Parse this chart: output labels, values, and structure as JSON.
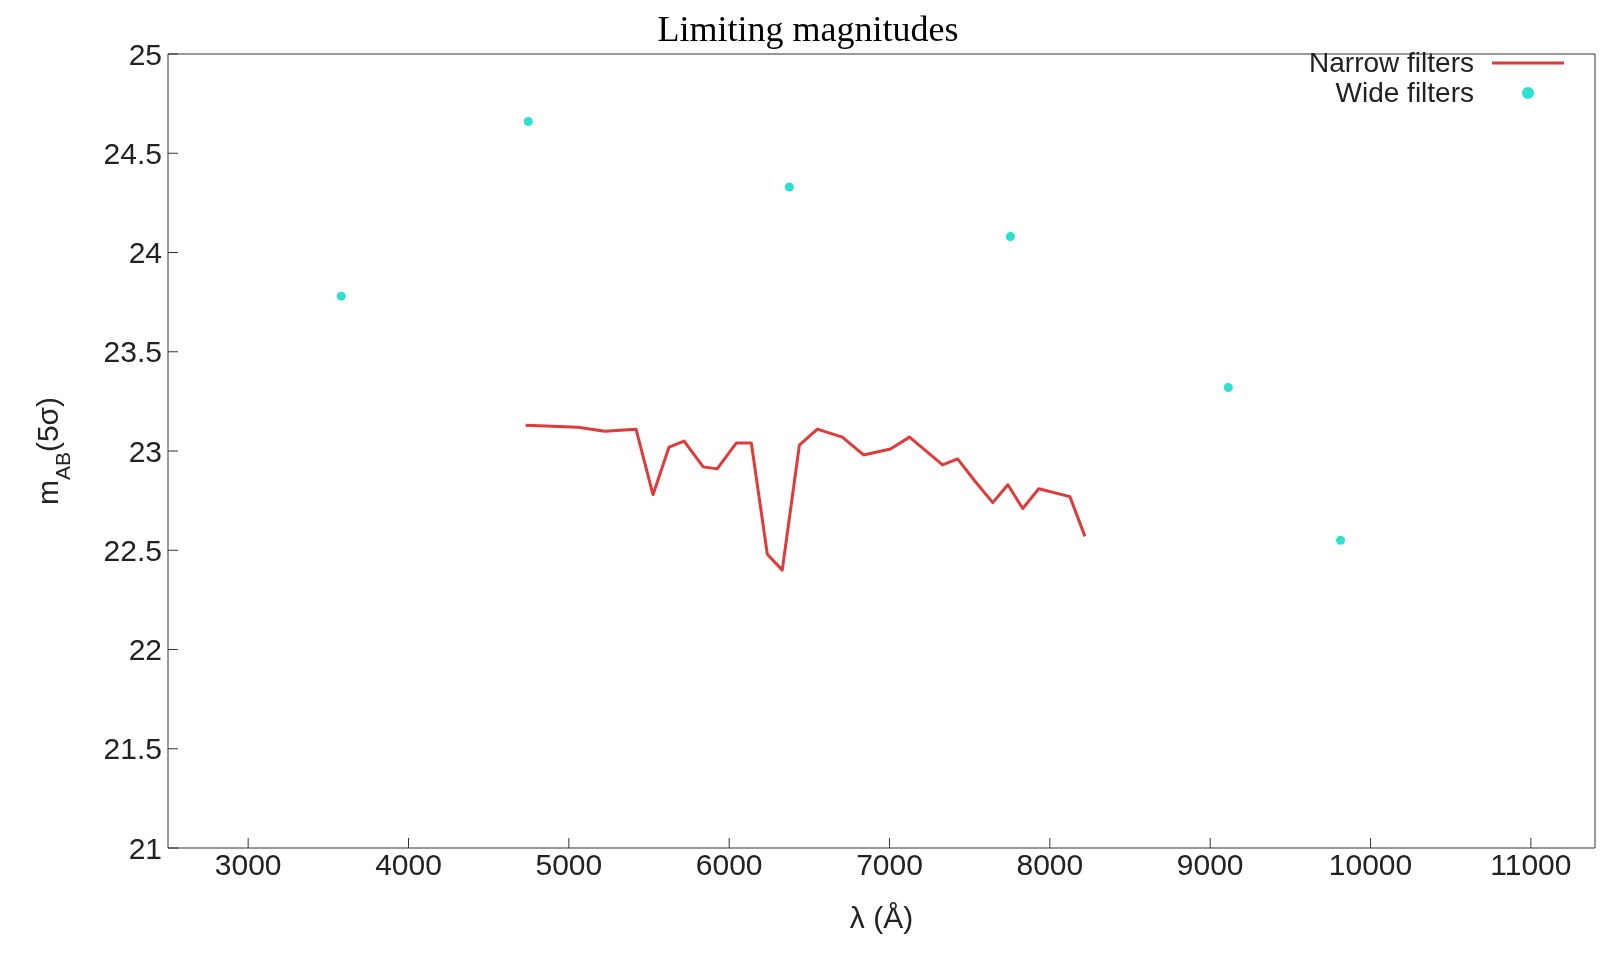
{
  "chart_data": {
    "type": "line",
    "title": "Limiting magnitudes",
    "xlabel": "λ (Å)",
    "ylabel": "m$_{AB}$(5σ)",
    "xlim": [
      2500,
      11400
    ],
    "xticks": [
      3000,
      4000,
      5000,
      6000,
      7000,
      8000,
      9000,
      10000,
      11000
    ],
    "ylim": [
      21,
      25
    ],
    "yticks": [
      21,
      21.5,
      22,
      22.5,
      23,
      23.5,
      24,
      24.5,
      25
    ],
    "grid": false,
    "legend": "top right",
    "series": [
      {
        "name": "Narrow filters",
        "type": "line",
        "color": "#e03a3a",
        "marker": "none",
        "line_style": "solid",
        "x": [
          4731,
          5056,
          5225,
          5419,
          5525,
          5625,
          5719,
          5838,
          5925,
          6044,
          6138,
          6238,
          6331,
          6438,
          6550,
          6706,
          6838,
          7006,
          7125,
          7331,
          7425,
          7531,
          7644,
          7738,
          7831,
          7931,
          8125,
          8219
        ],
        "values": [
          23.13,
          23.12,
          23.1,
          23.11,
          22.78,
          23.02,
          23.05,
          22.92,
          22.91,
          23.04,
          23.04,
          22.48,
          22.4,
          23.03,
          23.11,
          23.07,
          22.98,
          23.01,
          23.07,
          22.93,
          22.96,
          22.85,
          22.74,
          22.83,
          22.71,
          22.81,
          22.77,
          22.57
        ]
      },
      {
        "name": "Wide filters",
        "type": "scatter",
        "color": "#2ee0d0",
        "marker": "circle",
        "x": [
          3581,
          4747,
          6375,
          7754,
          9113,
          9813
        ],
        "values": [
          23.78,
          24.66,
          24.33,
          24.08,
          23.32,
          22.55
        ]
      }
    ]
  }
}
